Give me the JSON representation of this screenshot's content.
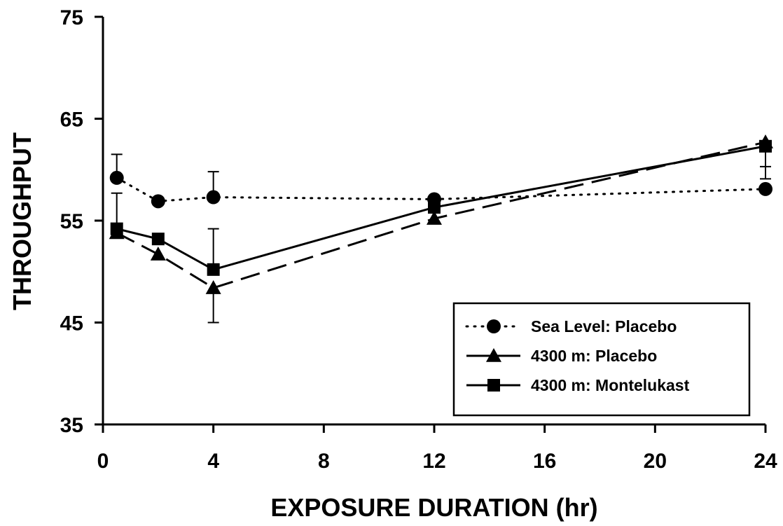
{
  "chart_data": {
    "type": "line",
    "title": "",
    "xlabel": "EXPOSURE DURATION (hr)",
    "ylabel": "THROUGHPUT",
    "xlim": [
      0,
      24
    ],
    "ylim": [
      35,
      75
    ],
    "xticks": [
      0,
      4,
      8,
      12,
      16,
      20,
      24
    ],
    "yticks": [
      35,
      45,
      55,
      65,
      75
    ],
    "grid": false,
    "legend_position": "bottom-right",
    "series": [
      {
        "name": "Sea Level: Placebo",
        "line_style": "dotted",
        "marker": "circle",
        "color": "#000000",
        "x": [
          0.5,
          2,
          4,
          12,
          24
        ],
        "y": [
          59.2,
          56.9,
          57.3,
          57.1,
          58.1
        ],
        "error_upper": [
          2.3,
          null,
          2.5,
          null,
          null
        ],
        "error_lower": [
          null,
          null,
          null,
          null,
          null
        ]
      },
      {
        "name": "4300 m: Placebo",
        "line_style": "dashed",
        "marker": "triangle",
        "color": "#000000",
        "x": [
          0.5,
          2,
          4,
          12,
          24
        ],
        "y": [
          53.8,
          51.7,
          48.4,
          55.2,
          62.7
        ],
        "error_upper": [
          null,
          null,
          null,
          null,
          null
        ],
        "error_lower": [
          null,
          null,
          3.4,
          null,
          3.6
        ]
      },
      {
        "name": "4300 m: Montelukast",
        "line_style": "solid",
        "marker": "square",
        "color": "#000000",
        "x": [
          0.5,
          2,
          4,
          12,
          24
        ],
        "y": [
          54.2,
          53.2,
          50.2,
          56.3,
          62.3
        ],
        "error_upper": [
          3.5,
          null,
          4.0,
          null,
          null
        ],
        "error_lower": [
          null,
          null,
          null,
          null,
          2.0
        ]
      }
    ]
  }
}
